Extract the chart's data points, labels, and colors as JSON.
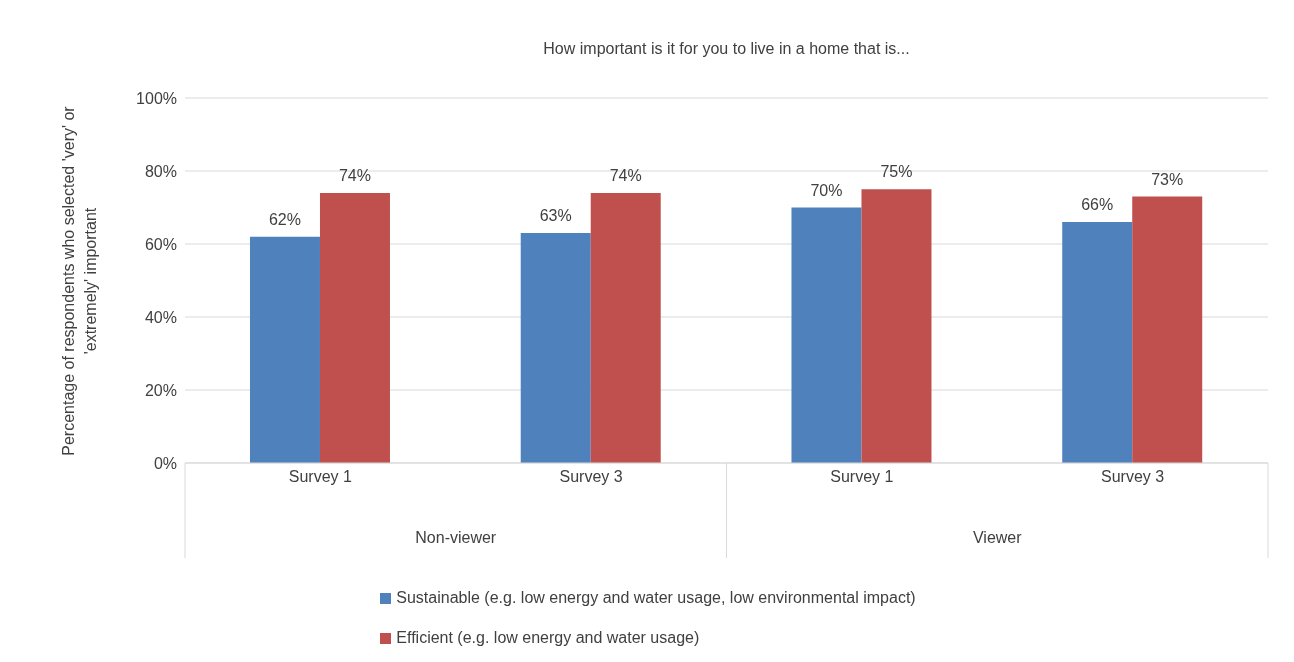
{
  "chart_data": {
    "type": "bar",
    "title": "How important is it for you to live in a home that is...",
    "ylabel": "Percentage of respondents who selected 'very' or 'extremely' important",
    "categories": [
      "Survey 1",
      "Survey 3",
      "Survey 1",
      "Survey 3"
    ],
    "annotations": [
      "Non-viewer",
      "Viewer"
    ],
    "series": [
      {
        "name": "Sustainable (e.g. low energy and water usage, low environmental impact)",
        "color": "#4f81bd",
        "values": [
          62,
          63,
          70,
          66
        ],
        "value_labels": [
          "62%",
          "63%",
          "70%",
          "66%"
        ]
      },
      {
        "name": "Efficient (e.g. low energy and water usage)",
        "color": "#c0504d",
        "values": [
          74,
          74,
          75,
          73
        ],
        "value_labels": [
          "74%",
          "74%",
          "75%",
          "73%"
        ]
      }
    ],
    "ylim": [
      0,
      100
    ],
    "yticks": [
      {
        "value": 0,
        "label": "0%"
      },
      {
        "value": 20,
        "label": "20%"
      },
      {
        "value": 40,
        "label": "40%"
      },
      {
        "value": 60,
        "label": "60%"
      },
      {
        "value": 80,
        "label": "80%"
      },
      {
        "value": 100,
        "label": "100%"
      }
    ],
    "grid": "y",
    "legend": "bottom"
  }
}
